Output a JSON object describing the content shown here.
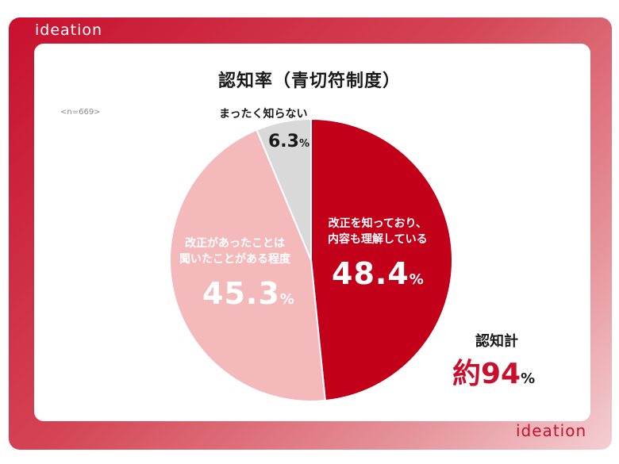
{
  "brand": {
    "logo_text": "ideation"
  },
  "chart_title": "認知率（青切符制度）",
  "sample_note": "<n=669>",
  "chart_data": {
    "type": "pie",
    "title": "認知率（青切符制度）",
    "slices": [
      {
        "name": "改正を知っており、内容も理解している",
        "value": 48.4,
        "color": "#c20019"
      },
      {
        "name": "改正があったことは聞いたことがある程度",
        "value": 45.3,
        "color": "#f4b9bb"
      },
      {
        "name": "まったく知らない",
        "value": 6.3,
        "color": "#d9d9d9"
      }
    ],
    "label_lines": [
      [
        "改正を知っており、",
        "内容も理解している"
      ],
      [
        "改正があったことは",
        "聞いたことがある程度"
      ],
      [
        "まったく知らない"
      ]
    ],
    "value_texts": [
      "48.4",
      "45.3",
      "6.3"
    ],
    "percent_sign": "%"
  },
  "total": {
    "label": "認知計",
    "value_text": "約94",
    "percent_sign": "%"
  },
  "colors": {
    "brand_red": "#c8102e",
    "text_dark": "#1a1a1a"
  }
}
